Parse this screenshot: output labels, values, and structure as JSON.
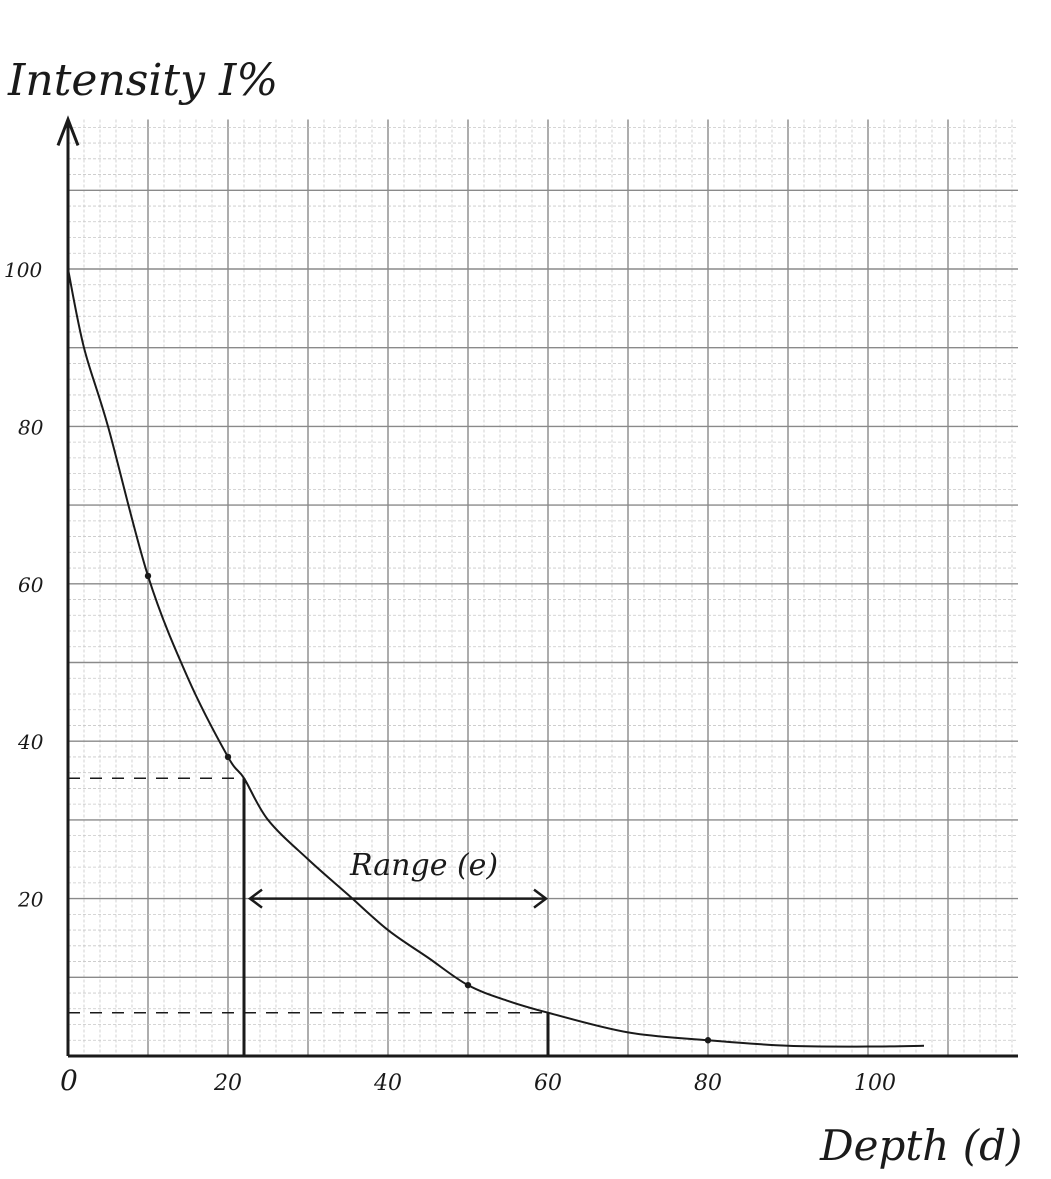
{
  "chart_data": {
    "type": "line",
    "ylabel": "Intensity I%",
    "xlabel": "Depth (d)",
    "x_ticks": [
      0,
      20,
      40,
      60,
      80,
      100
    ],
    "x_tick_labels": [
      "0",
      "20",
      "40",
      "60",
      "80",
      "100"
    ],
    "y_ticks": [
      20,
      40,
      60,
      80,
      100
    ],
    "y_tick_labels": [
      "20",
      "40",
      "60",
      "80",
      "100"
    ],
    "xlim": [
      0,
      118.75
    ],
    "ylim": [
      0,
      119
    ],
    "grid": {
      "major": 10,
      "minor": 2,
      "on": true
    },
    "series": [
      {
        "x": [
          0,
          2,
          5,
          10,
          15,
          20,
          22,
          25,
          30,
          35,
          40,
          45,
          50,
          55,
          60,
          70,
          80,
          90,
          100,
          107
        ],
        "y": [
          100,
          90,
          80,
          61,
          48,
          38,
          35.3,
          30,
          25,
          20.5,
          16,
          12.5,
          9,
          7,
          5.5,
          3,
          2,
          1.3,
          1.2,
          1.3
        ]
      }
    ],
    "marked_points": [
      {
        "x": 10,
        "y": 61
      },
      {
        "x": 20,
        "y": 38
      },
      {
        "x": 50,
        "y": 9
      },
      {
        "x": 80,
        "y": 2
      }
    ],
    "annotations": {
      "range_label": "Range (e)",
      "range_from_x": 22,
      "range_to_x": 60,
      "range_arrow_y": 20,
      "dashed_levels": [
        {
          "y": 35.3,
          "x": 22
        },
        {
          "y": 5.5,
          "x": 60
        }
      ]
    },
    "colors": {
      "ink": "#1a1a1a",
      "grid_major": "#8a8a8a",
      "grid_minor": "#c8c8c8"
    }
  }
}
